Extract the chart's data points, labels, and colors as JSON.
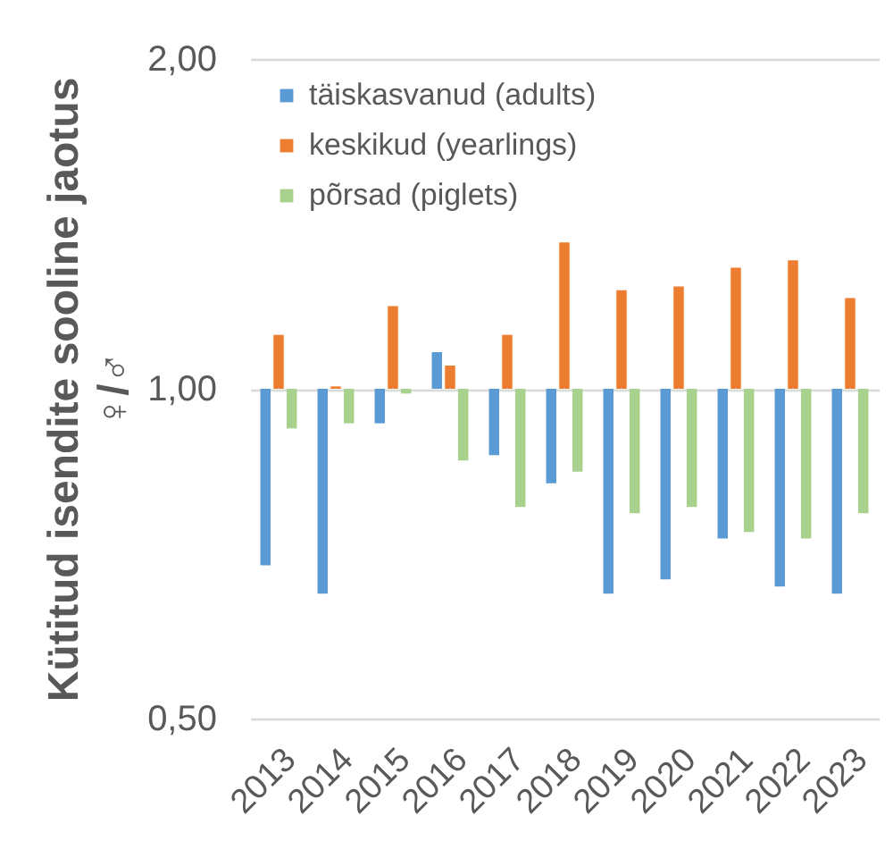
{
  "chart_data": {
    "type": "bar",
    "ylabel": "Kütitud isendite sooline jaotus\n♀/♂",
    "categories": [
      "2013",
      "2014",
      "2015",
      "2016",
      "2017",
      "2018",
      "2019",
      "2020",
      "2021",
      "2022",
      "2023"
    ],
    "series": [
      {
        "name": "täiskasvanud (adults)",
        "color": "#5b9bd5",
        "base": [
          1,
          1,
          1,
          1,
          1,
          1,
          1,
          1,
          1,
          1,
          1
        ],
        "values": [
          -0.31,
          -0.35,
          -0.07,
          0.08,
          -0.13,
          -0.18,
          -0.35,
          -0.33,
          -0.27,
          -0.34,
          -0.35
        ]
      },
      {
        "name": "keskikud (yearlings)",
        "color": "#ed7d31",
        "base": [
          1,
          1,
          1,
          1,
          1,
          1,
          1,
          1,
          1,
          1,
          1
        ],
        "values": [
          0.12,
          0.005,
          0.19,
          0.05,
          0.12,
          0.36,
          0.23,
          0.24,
          0.29,
          0.31,
          0.21
        ]
      },
      {
        "name": "põrsad (piglets)",
        "color": "#a9d18e",
        "base": [
          1,
          1,
          1,
          1,
          1,
          1,
          1,
          1,
          1,
          1,
          1
        ],
        "values": [
          -0.08,
          -0.07,
          -0.01,
          -0.14,
          -0.22,
          -0.16,
          -0.23,
          -0.22,
          -0.26,
          -0.27,
          -0.23
        ]
      }
    ],
    "log": true,
    "ylim": [
      0.5,
      2
    ],
    "yticks": [
      {
        "value": 0.5,
        "label": "0,50"
      },
      {
        "value": 1,
        "label": "1,00"
      },
      {
        "value": 2,
        "label": "2,00"
      }
    ],
    "grid": "y",
    "legend": "top left"
  }
}
